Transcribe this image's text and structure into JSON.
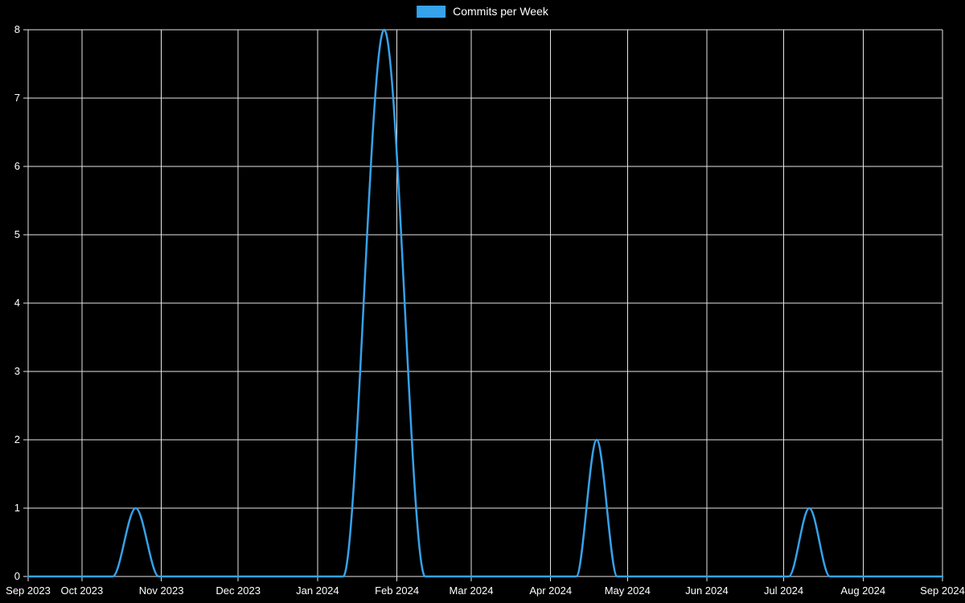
{
  "colors": {
    "background": "#000000",
    "grid": "#e6e6e6",
    "text": "#ffffff",
    "line": "#36a2eb"
  },
  "chart_data": {
    "type": "line",
    "title": "",
    "legend": [
      {
        "label": "Commits per Week",
        "color": "#36a2eb"
      }
    ],
    "xlabel": "",
    "ylabel": "",
    "ylim": [
      0,
      8
    ],
    "y_ticks": [
      0,
      1,
      2,
      3,
      4,
      5,
      6,
      7,
      8
    ],
    "xlim": [
      0,
      357
    ],
    "x_unit": "days from axis start (~Sep 10 2023)",
    "x_ticks": [
      {
        "label": "Sep 2023",
        "pos": 0
      },
      {
        "label": "Oct 2023",
        "pos": 21
      },
      {
        "label": "Nov 2023",
        "pos": 52
      },
      {
        "label": "Dec 2023",
        "pos": 82
      },
      {
        "label": "Jan 2024",
        "pos": 113
      },
      {
        "label": "Feb 2024",
        "pos": 144
      },
      {
        "label": "Mar 2024",
        "pos": 173
      },
      {
        "label": "Apr 2024",
        "pos": 204
      },
      {
        "label": "May 2024",
        "pos": 234
      },
      {
        "label": "Jun 2024",
        "pos": 265
      },
      {
        "label": "Jul 2024",
        "pos": 295
      },
      {
        "label": "Aug 2024",
        "pos": 326
      },
      {
        "label": "Sep 2024",
        "pos": 357
      }
    ],
    "grid": true,
    "legend_position": "top-center",
    "series": [
      {
        "name": "Commits per Week",
        "color": "#36a2eb",
        "peaks_summary": [
          {
            "approx_date": "mid-Oct 2023",
            "value": 1
          },
          {
            "approx_date": "late Jan 2024",
            "value": 8
          },
          {
            "approx_date": "mid-Apr 2024",
            "value": 2
          },
          {
            "approx_date": "early Jul 2024",
            "value": 1
          }
        ],
        "points": [
          {
            "x": 0,
            "y": 0
          },
          {
            "x": 15,
            "y": 0
          },
          {
            "x": 33,
            "y": 0
          },
          {
            "x": 42,
            "y": 1
          },
          {
            "x": 51,
            "y": 0
          },
          {
            "x": 70,
            "y": 0
          },
          {
            "x": 95,
            "y": 0
          },
          {
            "x": 115,
            "y": 0
          },
          {
            "x": 123,
            "y": 0
          },
          {
            "x": 139,
            "y": 8
          },
          {
            "x": 155,
            "y": 0
          },
          {
            "x": 175,
            "y": 0
          },
          {
            "x": 200,
            "y": 0
          },
          {
            "x": 214,
            "y": 0
          },
          {
            "x": 222,
            "y": 2
          },
          {
            "x": 230,
            "y": 0
          },
          {
            "x": 250,
            "y": 0
          },
          {
            "x": 275,
            "y": 0
          },
          {
            "x": 297,
            "y": 0
          },
          {
            "x": 305,
            "y": 1
          },
          {
            "x": 313,
            "y": 0
          },
          {
            "x": 335,
            "y": 0
          },
          {
            "x": 357,
            "y": 0
          }
        ]
      }
    ]
  }
}
